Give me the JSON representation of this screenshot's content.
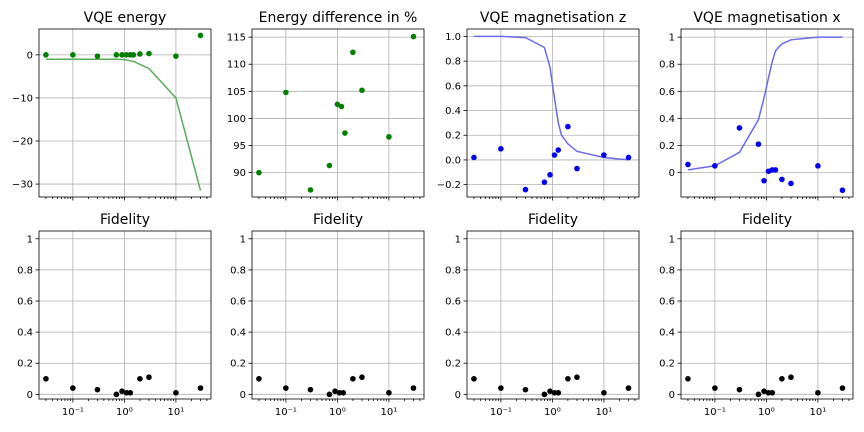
{
  "chart_data": [
    {
      "type": "line+scatter",
      "title": "VQE energy",
      "xscale": "log",
      "xlim": [
        0.022,
        48
      ],
      "ylim": [
        -33,
        6
      ],
      "xticks": [
        {
          "value": 0.1,
          "label": "10⁻¹"
        },
        {
          "value": 1,
          "label": "10⁰"
        },
        {
          "value": 10,
          "label": "10¹"
        }
      ],
      "yticks": [
        -30,
        -20,
        -10,
        0
      ],
      "grid": true,
      "show_xticklabels": false,
      "line": {
        "color": "#5aaa5a",
        "x": [
          0.03,
          0.1,
          0.3,
          0.7,
          1.0,
          1.5,
          3.0,
          10,
          30
        ],
        "y": [
          -1.0,
          -1.0,
          -1.0,
          -1.0,
          -1.1,
          -1.5,
          -3.2,
          -10,
          -31.5
        ]
      },
      "points": {
        "color": "#008000",
        "x": [
          0.03,
          0.1,
          0.3,
          0.7,
          0.9,
          1.1,
          1.3,
          1.5,
          2.0,
          3.0,
          10,
          30
        ],
        "y": [
          0.0,
          0.0,
          -0.3,
          0.0,
          0.0,
          0.0,
          0.0,
          0.0,
          0.2,
          0.3,
          -0.3,
          4.5
        ]
      }
    },
    {
      "type": "scatter",
      "title": "Energy difference in %",
      "xscale": "log",
      "xlim": [
        0.022,
        48
      ],
      "ylim": [
        85.5,
        116.5
      ],
      "xticks": [
        {
          "value": 0.1,
          "label": "10⁻¹"
        },
        {
          "value": 1,
          "label": "10⁰"
        },
        {
          "value": 10,
          "label": "10¹"
        }
      ],
      "yticks": [
        90,
        95,
        100,
        105,
        110,
        115
      ],
      "grid": true,
      "show_xticklabels": false,
      "points": {
        "color": "#008000",
        "x": [
          0.03,
          0.1,
          0.3,
          0.7,
          1.0,
          1.2,
          1.4,
          2.0,
          3.0,
          10,
          30
        ],
        "y": [
          90.0,
          104.8,
          86.8,
          91.3,
          102.6,
          102.2,
          97.3,
          112.2,
          105.2,
          96.6,
          115.1
        ]
      }
    },
    {
      "type": "line+scatter",
      "title": "VQE magnetisation z",
      "xscale": "log",
      "xlim": [
        0.022,
        48
      ],
      "ylim": [
        -0.3,
        1.06
      ],
      "xticks": [
        {
          "value": 0.1,
          "label": "10⁻¹"
        },
        {
          "value": 1,
          "label": "10⁰"
        },
        {
          "value": 10,
          "label": "10¹"
        }
      ],
      "yticks": [
        {
          "value": -0.2,
          "label": "−0.2"
        },
        {
          "value": 0.0,
          "label": "0.0"
        },
        {
          "value": 0.2,
          "label": "0.2"
        },
        {
          "value": 0.4,
          "label": "0.4"
        },
        {
          "value": 0.6,
          "label": "0.6"
        },
        {
          "value": 0.8,
          "label": "0.8"
        },
        {
          "value": 1.0,
          "label": "1.0"
        }
      ],
      "grid": true,
      "show_xticklabels": false,
      "line": {
        "color": "#6b6bea",
        "x": [
          0.03,
          0.1,
          0.3,
          0.7,
          0.9,
          1.1,
          1.3,
          1.5,
          2.0,
          3.0,
          10,
          30
        ],
        "y": [
          1.0,
          1.0,
          0.99,
          0.91,
          0.75,
          0.5,
          0.3,
          0.2,
          0.13,
          0.07,
          0.02,
          0.0
        ]
      },
      "points": {
        "color": "#0000ee",
        "x": [
          0.03,
          0.1,
          0.3,
          0.7,
          0.9,
          1.1,
          1.3,
          2.0,
          3.0,
          10,
          30
        ],
        "y": [
          0.02,
          0.09,
          -0.24,
          -0.18,
          -0.12,
          0.04,
          0.08,
          0.27,
          -0.07,
          0.04,
          0.02
        ]
      }
    },
    {
      "type": "line+scatter",
      "title": "VQE magnetisation x",
      "xscale": "log",
      "xlim": [
        0.022,
        48
      ],
      "ylim": [
        -0.18,
        1.06
      ],
      "xticks": [
        {
          "value": 0.1,
          "label": "10⁻¹"
        },
        {
          "value": 1,
          "label": "10⁰"
        },
        {
          "value": 10,
          "label": "10¹"
        }
      ],
      "yticks": [
        0.0,
        0.2,
        0.4,
        0.6,
        0.8,
        1.0
      ],
      "grid": true,
      "show_xticklabels": false,
      "line": {
        "color": "#6b6bea",
        "x": [
          0.03,
          0.1,
          0.3,
          0.7,
          0.9,
          1.1,
          1.3,
          1.5,
          2.0,
          3.0,
          10,
          30
        ],
        "y": [
          0.02,
          0.05,
          0.15,
          0.39,
          0.55,
          0.7,
          0.82,
          0.9,
          0.95,
          0.98,
          1.0,
          1.0
        ]
      },
      "points": {
        "color": "#0000ee",
        "x": [
          0.03,
          0.1,
          0.3,
          0.7,
          0.9,
          1.1,
          1.3,
          1.5,
          2.0,
          3.0,
          10,
          30
        ],
        "y": [
          0.06,
          0.05,
          0.33,
          0.21,
          -0.06,
          0.01,
          0.02,
          0.02,
          -0.05,
          -0.08,
          0.05,
          -0.13
        ]
      }
    },
    {
      "type": "scatter",
      "title": "Fidelity",
      "xscale": "log",
      "xlim": [
        0.022,
        48
      ],
      "ylim": [
        -0.03,
        1.05
      ],
      "xticks": [
        {
          "value": 0.1,
          "label": "10⁻¹"
        },
        {
          "value": 1,
          "label": "10⁰"
        },
        {
          "value": 10,
          "label": "10¹"
        }
      ],
      "yticks": [
        0.0,
        0.2,
        0.4,
        0.6,
        0.8,
        1.0
      ],
      "grid": true,
      "show_xticklabels": true,
      "points": {
        "color": "#000000",
        "x": [
          0.03,
          0.1,
          0.3,
          0.7,
          0.9,
          1.1,
          1.3,
          2.0,
          3.0,
          10,
          30
        ],
        "y": [
          0.1,
          0.04,
          0.03,
          0.0,
          0.02,
          0.01,
          0.01,
          0.1,
          0.11,
          0.01,
          0.04
        ]
      }
    },
    {
      "type": "scatter",
      "title": "Fidelity",
      "xscale": "log",
      "xlim": [
        0.022,
        48
      ],
      "ylim": [
        -0.03,
        1.05
      ],
      "xticks": [
        {
          "value": 0.1,
          "label": "10⁻¹"
        },
        {
          "value": 1,
          "label": "10⁰"
        },
        {
          "value": 10,
          "label": "10¹"
        }
      ],
      "yticks": [
        0.0,
        0.2,
        0.4,
        0.6,
        0.8,
        1.0
      ],
      "grid": true,
      "show_xticklabels": true,
      "points": {
        "color": "#000000",
        "x": [
          0.03,
          0.1,
          0.3,
          0.7,
          0.9,
          1.1,
          1.3,
          2.0,
          3.0,
          10,
          30
        ],
        "y": [
          0.1,
          0.04,
          0.03,
          0.0,
          0.02,
          0.01,
          0.01,
          0.1,
          0.11,
          0.01,
          0.04
        ]
      }
    },
    {
      "type": "scatter",
      "title": "Fidelity",
      "xscale": "log",
      "xlim": [
        0.022,
        48
      ],
      "ylim": [
        -0.03,
        1.05
      ],
      "xticks": [
        {
          "value": 0.1,
          "label": "10⁻¹"
        },
        {
          "value": 1,
          "label": "10⁰"
        },
        {
          "value": 10,
          "label": "10¹"
        }
      ],
      "yticks": [
        0.0,
        0.2,
        0.4,
        0.6,
        0.8,
        1.0
      ],
      "grid": true,
      "show_xticklabels": true,
      "points": {
        "color": "#000000",
        "x": [
          0.03,
          0.1,
          0.3,
          0.7,
          0.9,
          1.1,
          1.3,
          2.0,
          3.0,
          10,
          30
        ],
        "y": [
          0.1,
          0.04,
          0.03,
          0.0,
          0.02,
          0.01,
          0.01,
          0.1,
          0.11,
          0.01,
          0.04
        ]
      }
    },
    {
      "type": "scatter",
      "title": "Fidelity",
      "xscale": "log",
      "xlim": [
        0.022,
        48
      ],
      "ylim": [
        -0.03,
        1.05
      ],
      "xticks": [
        {
          "value": 0.1,
          "label": "10⁻¹"
        },
        {
          "value": 1,
          "label": "10⁰"
        },
        {
          "value": 10,
          "label": "10¹"
        }
      ],
      "yticks": [
        0.0,
        0.2,
        0.4,
        0.6,
        0.8,
        1.0
      ],
      "grid": true,
      "show_xticklabels": true,
      "points": {
        "color": "#000000",
        "x": [
          0.03,
          0.1,
          0.3,
          0.7,
          0.9,
          1.1,
          1.3,
          2.0,
          3.0,
          10,
          30
        ],
        "y": [
          0.1,
          0.04,
          0.03,
          0.0,
          0.02,
          0.01,
          0.01,
          0.1,
          0.11,
          0.01,
          0.04
        ]
      }
    }
  ]
}
